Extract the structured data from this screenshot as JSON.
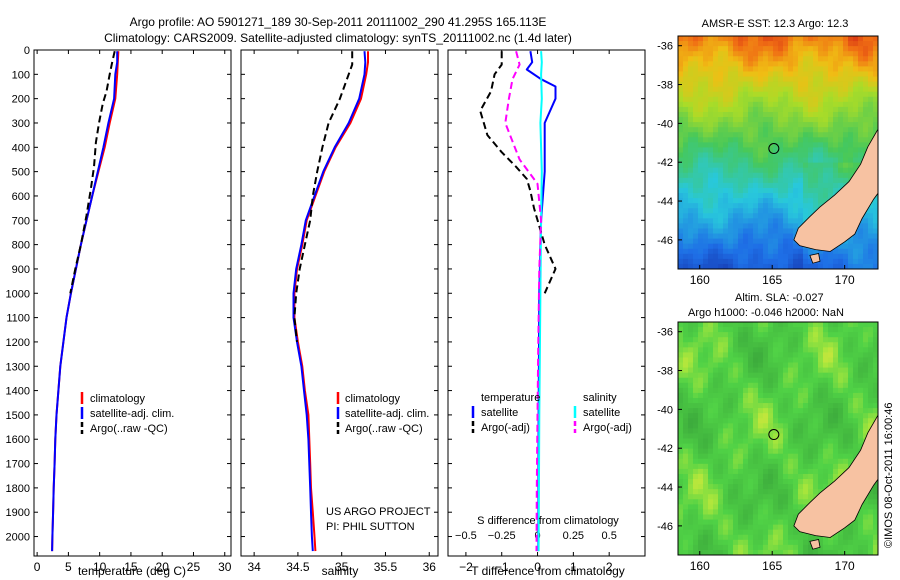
{
  "header": {
    "line1": "Argo profile: AO 5901271_189 30-Sep-2011 20111002_290 41.295S 165.113E",
    "line2": "Climatology: CARS2009. Satellite-adjusted climatology: synTS_20111002.nc (1.4d later)"
  },
  "colors": {
    "climatology": "#ff0000",
    "satellite": "#0000ff",
    "argo": "#000000",
    "satellite_s": "#00ffff",
    "argo_s": "#ff00ff",
    "land": "#f7c2a2"
  },
  "chart_data": [
    {
      "type": "line",
      "name": "temperature-panel",
      "xlabel": "temperature (deg C)",
      "ylabel": "",
      "xlim": [
        -0.5,
        31
      ],
      "ylim": [
        2080,
        0
      ],
      "xticks": [
        0,
        5,
        10,
        15,
        20,
        25,
        30
      ],
      "yticks": [
        0,
        100,
        200,
        300,
        400,
        500,
        600,
        700,
        800,
        900,
        1000,
        1100,
        1200,
        1300,
        1400,
        1500,
        1600,
        1700,
        1800,
        1900,
        2000
      ],
      "legend": [
        "climatology",
        "satellite-adj. clim.",
        "Argo(..raw -QC)"
      ],
      "series": [
        {
          "name": "climatology",
          "color": "#ff0000",
          "dash": "",
          "points": [
            [
              13.0,
              5
            ],
            [
              12.9,
              50
            ],
            [
              12.8,
              100
            ],
            [
              12.5,
              200
            ],
            [
              11.6,
              300
            ],
            [
              10.8,
              400
            ],
            [
              9.8,
              500
            ],
            [
              8.8,
              600
            ],
            [
              7.9,
              700
            ],
            [
              7.0,
              800
            ],
            [
              6.2,
              900
            ],
            [
              5.4,
              1000
            ],
            [
              4.7,
              1100
            ],
            [
              4.2,
              1200
            ],
            [
              3.7,
              1300
            ],
            [
              3.4,
              1400
            ],
            [
              3.1,
              1500
            ],
            [
              2.9,
              1600
            ],
            [
              2.8,
              1700
            ],
            [
              2.65,
              1800
            ],
            [
              2.55,
              1900
            ],
            [
              2.45,
              2000
            ],
            [
              2.4,
              2060
            ]
          ]
        },
        {
          "name": "satellite-adj. clim.",
          "color": "#0000ff",
          "dash": "",
          "points": [
            [
              12.8,
              5
            ],
            [
              12.8,
              50
            ],
            [
              12.5,
              100
            ],
            [
              12.3,
              200
            ],
            [
              11.4,
              300
            ],
            [
              10.6,
              400
            ],
            [
              9.7,
              500
            ],
            [
              8.8,
              600
            ],
            [
              7.9,
              700
            ],
            [
              7.0,
              800
            ],
            [
              6.2,
              900
            ],
            [
              5.4,
              1000
            ],
            [
              4.7,
              1100
            ],
            [
              4.2,
              1200
            ],
            [
              3.7,
              1300
            ],
            [
              3.4,
              1400
            ],
            [
              3.1,
              1500
            ],
            [
              2.9,
              1600
            ],
            [
              2.8,
              1700
            ],
            [
              2.65,
              1800
            ],
            [
              2.55,
              1900
            ],
            [
              2.45,
              2000
            ],
            [
              2.4,
              2060
            ]
          ]
        },
        {
          "name": "Argo(..raw -QC)",
          "color": "#000000",
          "dash": "7,4",
          "points": [
            [
              12.4,
              5
            ],
            [
              12.0,
              50
            ],
            [
              11.6,
              100
            ],
            [
              11.1,
              170
            ],
            [
              10.5,
              220
            ],
            [
              9.9,
              300
            ],
            [
              9.4,
              380
            ],
            [
              9.1,
              480
            ],
            [
              8.6,
              570
            ],
            [
              7.9,
              680
            ],
            [
              7.0,
              800
            ],
            [
              6.1,
              900
            ],
            [
              5.3,
              1000
            ]
          ]
        }
      ]
    },
    {
      "type": "line",
      "name": "salinity-panel",
      "xlabel": "salinity",
      "xlim": [
        33.85,
        36.1
      ],
      "ylim": [
        2080,
        0
      ],
      "xticks": [
        34,
        34.5,
        35,
        35.5,
        36
      ],
      "xticklabels": [
        "34",
        "34.5",
        "35",
        "35.5",
        "36"
      ],
      "legend": [
        "climatology",
        "satellite-adj. clim.",
        "Argo(..raw -QC)"
      ],
      "annotation": [
        "US ARGO PROJECT",
        "PI: PHIL SUTTON"
      ],
      "series": [
        {
          "name": "climatology",
          "color": "#ff0000",
          "dash": "",
          "points": [
            [
              35.3,
              5
            ],
            [
              35.3,
              50
            ],
            [
              35.28,
              100
            ],
            [
              35.22,
              200
            ],
            [
              35.1,
              300
            ],
            [
              34.93,
              400
            ],
            [
              34.8,
              500
            ],
            [
              34.7,
              600
            ],
            [
              34.6,
              700
            ],
            [
              34.55,
              800
            ],
            [
              34.49,
              900
            ],
            [
              34.46,
              1000
            ],
            [
              34.46,
              1100
            ],
            [
              34.5,
              1200
            ],
            [
              34.55,
              1300
            ],
            [
              34.58,
              1400
            ],
            [
              34.62,
              1500
            ],
            [
              34.63,
              1600
            ],
            [
              34.64,
              1700
            ],
            [
              34.65,
              1800
            ],
            [
              34.67,
              1900
            ],
            [
              34.69,
              2000
            ],
            [
              34.7,
              2060
            ]
          ]
        },
        {
          "name": "satellite-adj. clim.",
          "color": "#0000ff",
          "dash": "",
          "points": [
            [
              35.26,
              5
            ],
            [
              35.27,
              50
            ],
            [
              35.26,
              100
            ],
            [
              35.2,
              200
            ],
            [
              35.08,
              300
            ],
            [
              34.92,
              400
            ],
            [
              34.79,
              500
            ],
            [
              34.69,
              600
            ],
            [
              34.59,
              700
            ],
            [
              34.54,
              800
            ],
            [
              34.48,
              900
            ],
            [
              34.45,
              1000
            ],
            [
              34.45,
              1100
            ],
            [
              34.49,
              1200
            ],
            [
              34.54,
              1300
            ],
            [
              34.57,
              1400
            ],
            [
              34.6,
              1500
            ],
            [
              34.62,
              1600
            ],
            [
              34.63,
              1700
            ],
            [
              34.64,
              1800
            ],
            [
              34.65,
              1900
            ],
            [
              34.66,
              2000
            ],
            [
              34.67,
              2060
            ]
          ]
        },
        {
          "name": "Argo(..raw -QC)",
          "color": "#000000",
          "dash": "7,4",
          "points": [
            [
              35.12,
              5
            ],
            [
              35.12,
              60
            ],
            [
              35.08,
              100
            ],
            [
              34.98,
              200
            ],
            [
              34.85,
              300
            ],
            [
              34.78,
              400
            ],
            [
              34.72,
              500
            ],
            [
              34.67,
              600
            ],
            [
              34.64,
              700
            ],
            [
              34.58,
              800
            ],
            [
              34.52,
              900
            ],
            [
              34.48,
              1000
            ],
            [
              34.46,
              1100
            ],
            [
              34.49,
              1200
            ]
          ]
        }
      ]
    },
    {
      "type": "line",
      "name": "difference-panel",
      "xlabel": "T difference from climatology",
      "xlabel_top": "S difference from climatology",
      "xlim": [
        -2.5,
        3
      ],
      "ylim": [
        2080,
        0
      ],
      "xticks": [
        -2,
        -1,
        0,
        1,
        2
      ],
      "xticklabels": [
        "−2",
        "−1",
        "0",
        "1",
        "2"
      ],
      "s_ticklabels": [
        "−0.5",
        "−0.25",
        "0",
        "0.25",
        "0.5"
      ],
      "legend": {
        "temperature_heading": "temperature",
        "salinity_heading": "salinity",
        "t_satellite": "satellite",
        "t_argo": "Argo(-adj)",
        "s_satellite": "satellite",
        "s_argo": "Argo(-adj)"
      },
      "series": [
        {
          "name": "T satellite",
          "color": "#0000ff",
          "dash": "",
          "points": [
            [
              -0.2,
              5
            ],
            [
              -0.15,
              50
            ],
            [
              -0.3,
              80
            ],
            [
              0.1,
              120
            ],
            [
              0.5,
              150
            ],
            [
              0.5,
              200
            ],
            [
              0.2,
              300
            ],
            [
              0.2,
              500
            ],
            [
              0.1,
              700
            ],
            [
              0.05,
              1000
            ],
            [
              0.03,
              1500
            ],
            [
              0.02,
              2060
            ]
          ]
        },
        {
          "name": "S satellite",
          "color": "#00ffff",
          "dash": "",
          "points": [
            [
              0.1,
              5
            ],
            [
              0.12,
              50
            ],
            [
              0.1,
              100
            ],
            [
              0.12,
              200
            ],
            [
              0.08,
              300
            ],
            [
              0.1,
              400
            ],
            [
              0.12,
              500
            ],
            [
              0.1,
              700
            ],
            [
              0.08,
              1000
            ],
            [
              0.05,
              1500
            ],
            [
              0.03,
              2060
            ]
          ]
        },
        {
          "name": "T Argo",
          "color": "#000000",
          "dash": "7,4",
          "points": [
            [
              -1.0,
              5
            ],
            [
              -1.0,
              60
            ],
            [
              -1.2,
              100
            ],
            [
              -1.3,
              170
            ],
            [
              -1.6,
              250
            ],
            [
              -1.4,
              350
            ],
            [
              -1.0,
              420
            ],
            [
              -0.6,
              480
            ],
            [
              -0.3,
              530
            ],
            [
              -0.2,
              580
            ],
            [
              -0.1,
              650
            ],
            [
              0.2,
              800
            ],
            [
              0.5,
              900
            ],
            [
              0.2,
              1000
            ]
          ]
        },
        {
          "name": "S Argo",
          "color": "#ff00ff",
          "dash": "7,4",
          "points": [
            [
              -0.6,
              5
            ],
            [
              -0.5,
              60
            ],
            [
              -0.7,
              120
            ],
            [
              -0.8,
              200
            ],
            [
              -0.9,
              300
            ],
            [
              -0.5,
              450
            ],
            [
              0.0,
              550
            ],
            [
              0.1,
              700
            ],
            [
              0.05,
              900
            ],
            [
              0.02,
              1200
            ],
            [
              0.0,
              1500
            ],
            [
              -0.02,
              1800
            ],
            [
              -0.03,
              2060
            ]
          ]
        }
      ]
    },
    {
      "type": "heatmap",
      "name": "sst-map",
      "title": "AMSR-E SST: 12.3 Argo: 12.3",
      "xlim": [
        158.5,
        172.3
      ],
      "ylim": [
        -47.5,
        -35.5
      ],
      "xticks": [
        160,
        165,
        170
      ],
      "yticks": [
        -36,
        -38,
        -40,
        -42,
        -44,
        -46
      ],
      "marker": [
        165.113,
        -41.295
      ],
      "colorscale": "sst"
    },
    {
      "type": "heatmap",
      "name": "sla-map",
      "title_line1": "Altim. SLA: -0.027",
      "title_line2": "Argo h1000: -0.046 h2000: NaN",
      "xlim": [
        158.5,
        172.3
      ],
      "ylim": [
        -47.5,
        -35.5
      ],
      "xticks": [
        160,
        165,
        170
      ],
      "yticks": [
        -36,
        -38,
        -40,
        -42,
        -44,
        -46
      ],
      "marker": [
        165.113,
        -41.295
      ],
      "colorscale": "sla"
    }
  ],
  "footer": {
    "watermark": "©IMOS 08-Oct-2011 16:00:46"
  }
}
